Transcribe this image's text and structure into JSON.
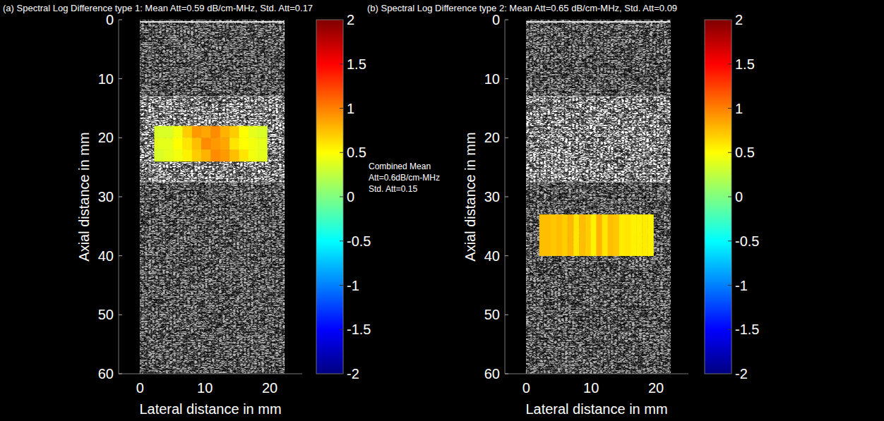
{
  "chart_data": [
    {
      "type": "heatmap",
      "title": "(a) Spectral Log Difference type 1: Mean Att=0.59 dB/cm-MHz, Std. Att=0.17",
      "xlabel": "Lateral distance in mm",
      "ylabel": "Axial distance in mm",
      "xlim": [
        -3.3,
        25
      ],
      "ylim": [
        0,
        60
      ],
      "xticks": [
        0,
        10,
        20
      ],
      "yticks": [
        0,
        10,
        20,
        30,
        40,
        50,
        60
      ],
      "image_extent_x": [
        0,
        22.2
      ],
      "image_layers": [
        13,
        27.5
      ],
      "cells_x": [
        2.2,
        19.6
      ],
      "cells_y": [
        18,
        24
      ],
      "cells": [
        [
          0.35,
          0.35,
          0.45,
          0.7,
          0.9,
          0.85,
          0.95,
          0.8,
          0.7,
          0.5,
          0.4,
          0.35
        ],
        [
          0.4,
          0.4,
          0.5,
          0.6,
          0.75,
          0.95,
          0.9,
          0.85,
          0.6,
          0.5,
          0.45,
          0.4
        ],
        [
          0.35,
          0.4,
          0.45,
          0.55,
          0.7,
          0.8,
          0.95,
          0.9,
          0.75,
          0.6,
          0.45,
          0.4
        ]
      ],
      "colorbar_range": [
        -2,
        2
      ],
      "colorbar_ticks": [
        2,
        1.5,
        1,
        0.5,
        0,
        -0.5,
        -1,
        -1.5,
        -2
      ],
      "annotation": [
        "Combined Mean",
        "Att=0.6dB/cm-MHz",
        "Std. Att=0.15"
      ]
    },
    {
      "type": "heatmap",
      "title": "(b) Spectral Log Difference type 2: Mean Att=0.65 dB/cm-MHz, Std. Att=0.09",
      "xlabel": "Lateral distance in mm",
      "ylabel": "Axial distance in mm",
      "xlim": [
        -3.3,
        25
      ],
      "ylim": [
        0,
        60
      ],
      "xticks": [
        0,
        10,
        20
      ],
      "yticks": [
        0,
        10,
        20,
        30,
        40,
        50,
        60
      ],
      "image_extent_x": [
        0,
        22.2
      ],
      "image_layers": [
        13,
        27.5
      ],
      "cells_x": [
        2,
        19.6
      ],
      "cells_y": [
        33,
        40
      ],
      "cells": [
        [
          0.75,
          0.75,
          0.72,
          0.75,
          0.7,
          0.78,
          0.6,
          0.75,
          0.7,
          0.55,
          0.8,
          0.6,
          0.75,
          0.72,
          0.58,
          0.6,
          0.55,
          0.55,
          0.58,
          0.55
        ]
      ],
      "colorbar_range": [
        -2,
        2
      ],
      "colorbar_ticks": [
        2,
        1.5,
        1,
        0.5,
        0,
        -0.5,
        -1,
        -1.5,
        -2
      ]
    }
  ]
}
